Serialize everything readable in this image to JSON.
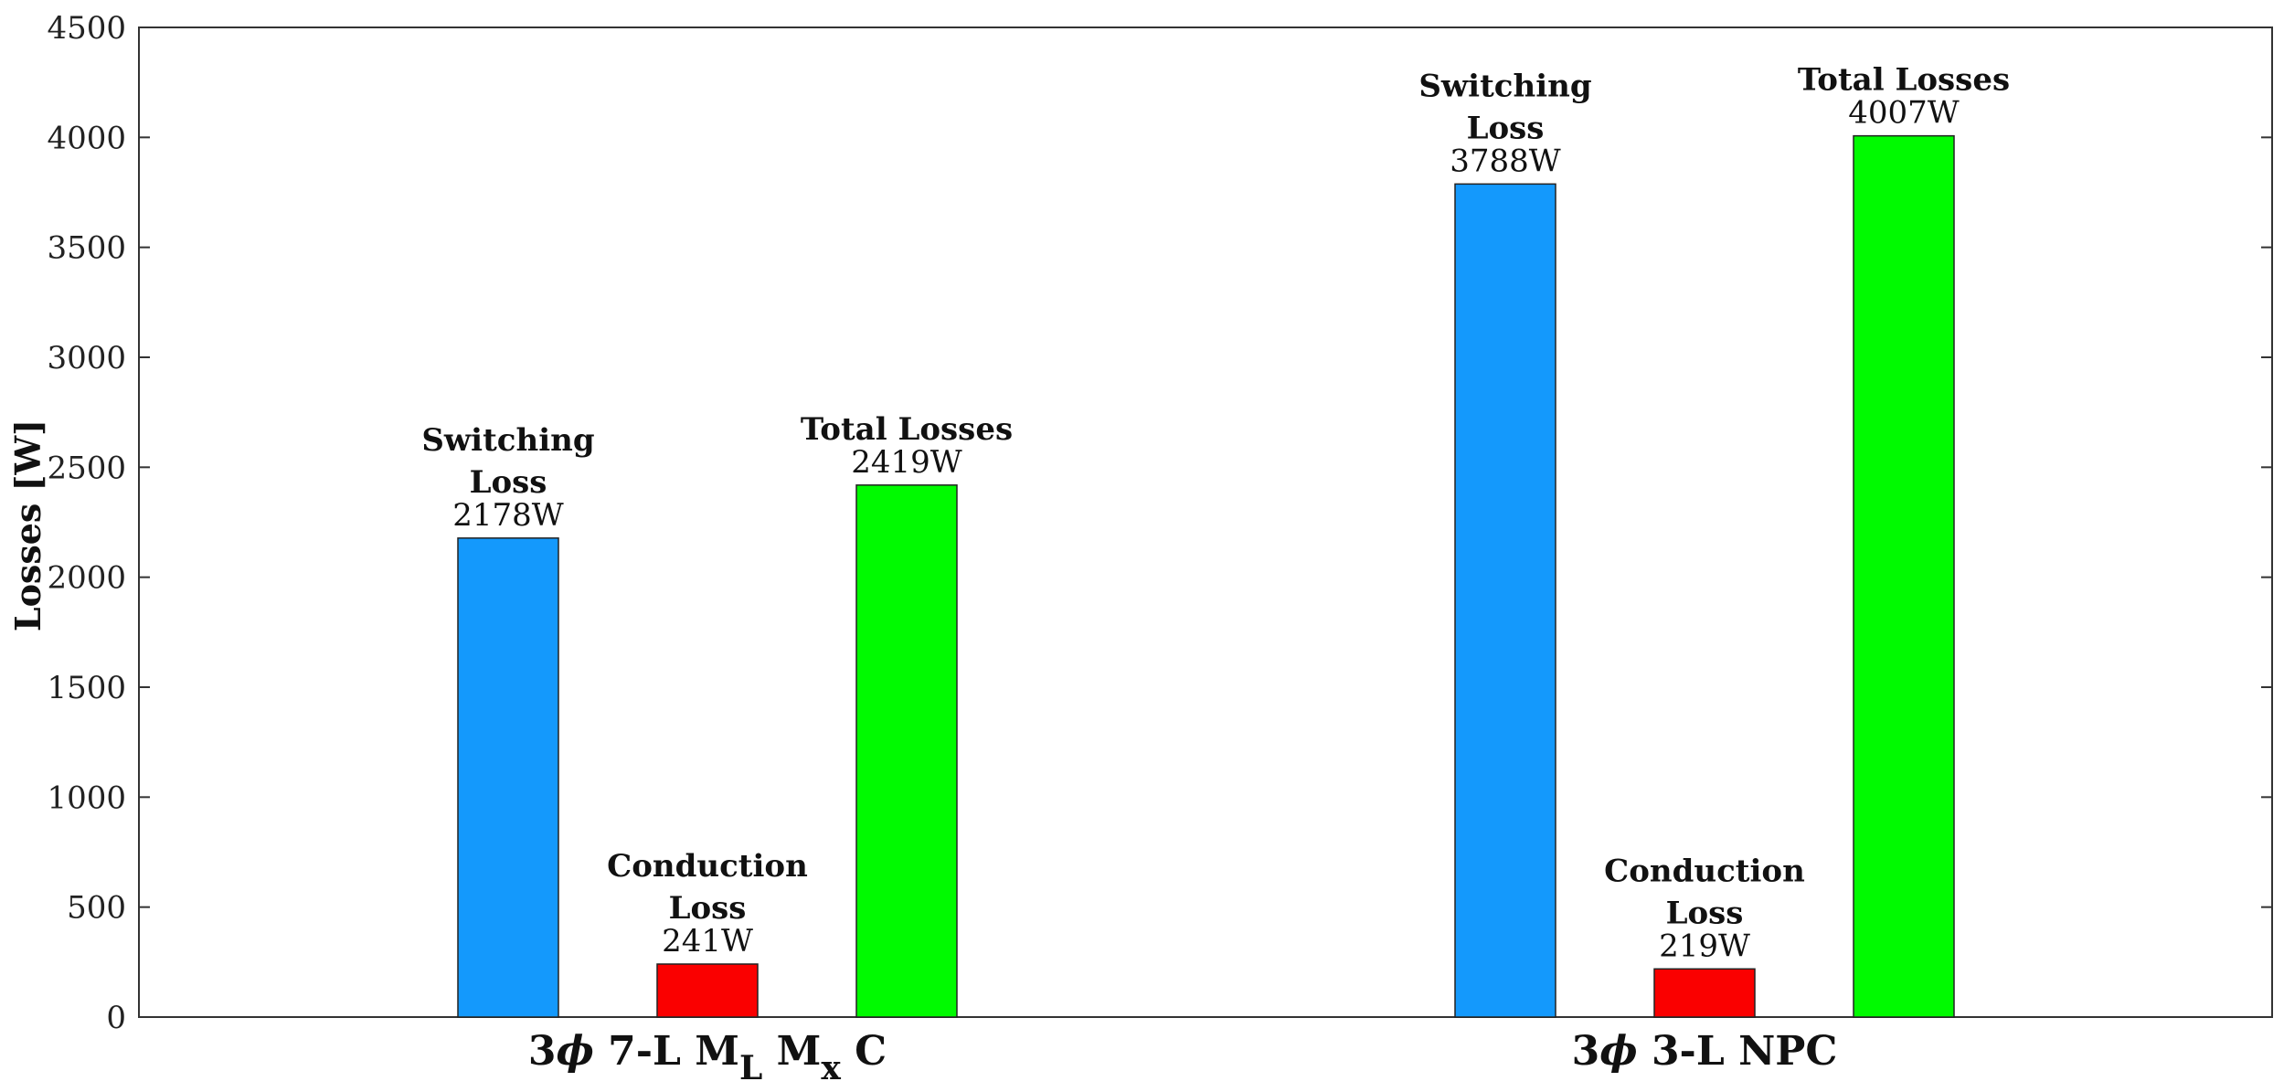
{
  "chart_data": {
    "type": "bar",
    "title": "",
    "xlabel": "",
    "ylabel": "Losses [W]",
    "ylim": [
      0,
      4500
    ],
    "yticks": [
      "0",
      "500",
      "1000",
      "1500",
      "2000",
      "2500",
      "3000",
      "3500",
      "4000",
      "4500"
    ],
    "categories": [
      {
        "name": "3ϕ 7-L M_L M_x C",
        "prefix": "3",
        "phi": "ϕ",
        "main": " 7-L M",
        "sub1": "L",
        "mid": " M",
        "sub2": "x",
        "tail": " C"
      },
      {
        "name": "3ϕ 3-L NPC",
        "prefix": "3",
        "phi": "ϕ",
        "main": " 3-L NPC",
        "sub1": "",
        "mid": "",
        "sub2": "",
        "tail": ""
      }
    ],
    "series": [
      {
        "name": "Switching Loss",
        "color": "#1499fc",
        "values": [
          2178,
          3788
        ],
        "label_lines": [
          [
            "Switching",
            "Loss"
          ],
          [
            "Switching",
            "Loss"
          ]
        ],
        "value_labels": [
          "2178W",
          "3788W"
        ]
      },
      {
        "name": "Conduction Loss",
        "color": "#fa0000",
        "values": [
          241,
          219
        ],
        "label_lines": [
          [
            "Conduction",
            "Loss"
          ],
          [
            "Conduction",
            "Loss"
          ]
        ],
        "value_labels": [
          "241W",
          "219W"
        ]
      },
      {
        "name": "Total Losses",
        "color": "#00fa00",
        "values": [
          2419,
          4007
        ],
        "label_lines": [
          [
            "Total Losses"
          ],
          [
            "Total Losses"
          ]
        ],
        "value_labels": [
          "2419W",
          "4007W"
        ]
      }
    ],
    "grid": false,
    "legend": "none"
  }
}
